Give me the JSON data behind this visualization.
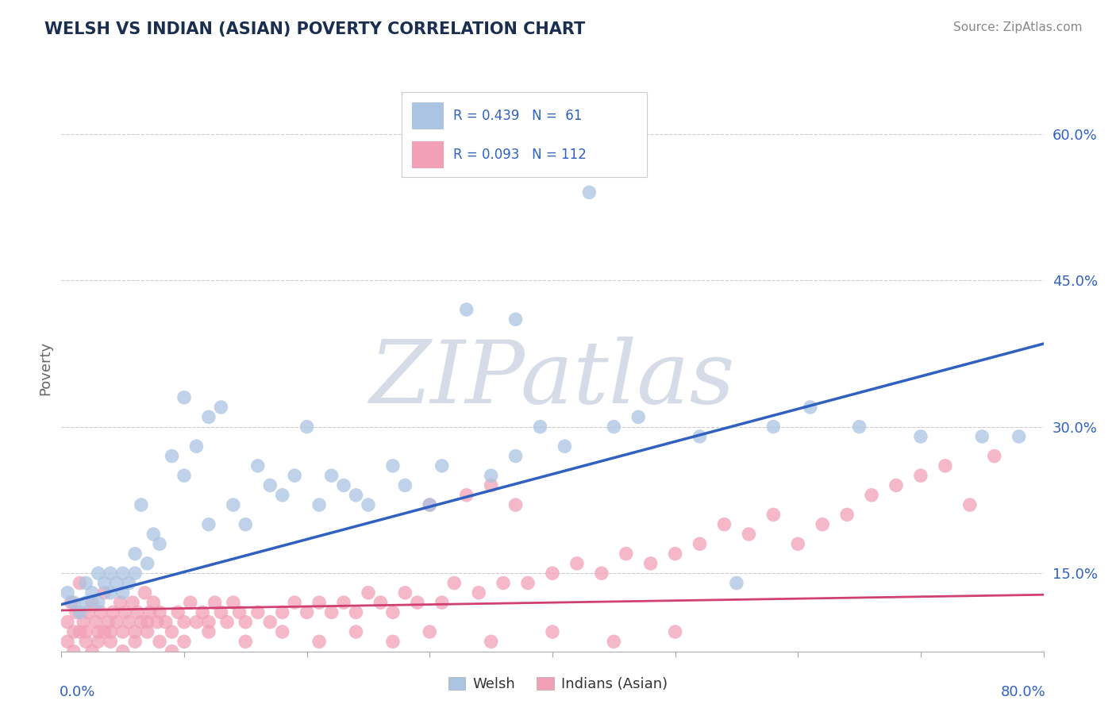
{
  "title": "WELSH VS INDIAN (ASIAN) POVERTY CORRELATION CHART",
  "source": "Source: ZipAtlas.com",
  "ylabel": "Poverty",
  "xlim": [
    0.0,
    0.8
  ],
  "ylim": [
    0.07,
    0.65
  ],
  "welsh_R": 0.439,
  "welsh_N": 61,
  "indian_R": 0.093,
  "indian_N": 112,
  "welsh_color": "#aac4e2",
  "indian_color": "#f2a0b8",
  "blue_line_color": "#3060c0",
  "pink_line_color": "#d04070",
  "title_color": "#1a2e50",
  "legend_text_color": "#3060c0",
  "background_color": "#ffffff",
  "watermark": "ZIPatlas",
  "watermark_color": "#d5dce8",
  "welsh_line_start_y": 0.118,
  "welsh_line_end_y": 0.385,
  "indian_line_start_y": 0.112,
  "indian_line_end_y": 0.128,
  "welsh_scatter_x": [
    0.005,
    0.01,
    0.015,
    0.02,
    0.02,
    0.025,
    0.03,
    0.03,
    0.035,
    0.04,
    0.04,
    0.045,
    0.05,
    0.05,
    0.055,
    0.06,
    0.06,
    0.065,
    0.07,
    0.075,
    0.08,
    0.09,
    0.1,
    0.1,
    0.11,
    0.12,
    0.12,
    0.13,
    0.14,
    0.15,
    0.16,
    0.17,
    0.18,
    0.19,
    0.2,
    0.21,
    0.22,
    0.23,
    0.24,
    0.25,
    0.27,
    0.28,
    0.3,
    0.31,
    0.33,
    0.35,
    0.37,
    0.39,
    0.41,
    0.43,
    0.45,
    0.47,
    0.37,
    0.52,
    0.55,
    0.58,
    0.61,
    0.65,
    0.7,
    0.75,
    0.78
  ],
  "welsh_scatter_y": [
    0.13,
    0.12,
    0.11,
    0.12,
    0.14,
    0.13,
    0.12,
    0.15,
    0.14,
    0.13,
    0.15,
    0.14,
    0.13,
    0.15,
    0.14,
    0.15,
    0.17,
    0.22,
    0.16,
    0.19,
    0.18,
    0.27,
    0.25,
    0.33,
    0.28,
    0.2,
    0.31,
    0.32,
    0.22,
    0.2,
    0.26,
    0.24,
    0.23,
    0.25,
    0.3,
    0.22,
    0.25,
    0.24,
    0.23,
    0.22,
    0.26,
    0.24,
    0.22,
    0.26,
    0.42,
    0.25,
    0.27,
    0.3,
    0.28,
    0.54,
    0.3,
    0.31,
    0.41,
    0.29,
    0.14,
    0.3,
    0.32,
    0.3,
    0.29,
    0.29,
    0.29
  ],
  "indian_scatter_x": [
    0.005,
    0.008,
    0.01,
    0.012,
    0.015,
    0.018,
    0.02,
    0.022,
    0.025,
    0.028,
    0.03,
    0.032,
    0.035,
    0.038,
    0.04,
    0.042,
    0.045,
    0.048,
    0.05,
    0.052,
    0.055,
    0.058,
    0.06,
    0.062,
    0.065,
    0.068,
    0.07,
    0.072,
    0.075,
    0.078,
    0.08,
    0.085,
    0.09,
    0.095,
    0.1,
    0.105,
    0.11,
    0.115,
    0.12,
    0.125,
    0.13,
    0.135,
    0.14,
    0.145,
    0.15,
    0.16,
    0.17,
    0.18,
    0.19,
    0.2,
    0.21,
    0.22,
    0.23,
    0.24,
    0.25,
    0.26,
    0.27,
    0.28,
    0.29,
    0.3,
    0.31,
    0.32,
    0.33,
    0.34,
    0.35,
    0.36,
    0.37,
    0.38,
    0.4,
    0.42,
    0.44,
    0.46,
    0.48,
    0.5,
    0.52,
    0.54,
    0.56,
    0.58,
    0.6,
    0.62,
    0.64,
    0.66,
    0.68,
    0.7,
    0.72,
    0.74,
    0.76,
    0.005,
    0.01,
    0.015,
    0.02,
    0.025,
    0.03,
    0.035,
    0.04,
    0.05,
    0.06,
    0.07,
    0.08,
    0.09,
    0.1,
    0.12,
    0.15,
    0.18,
    0.21,
    0.24,
    0.27,
    0.3,
    0.35,
    0.4,
    0.45,
    0.5
  ],
  "indian_scatter_y": [
    0.1,
    0.12,
    0.09,
    0.11,
    0.14,
    0.1,
    0.09,
    0.11,
    0.12,
    0.1,
    0.09,
    0.11,
    0.13,
    0.1,
    0.09,
    0.11,
    0.1,
    0.12,
    0.09,
    0.11,
    0.1,
    0.12,
    0.09,
    0.11,
    0.1,
    0.13,
    0.1,
    0.11,
    0.12,
    0.1,
    0.11,
    0.1,
    0.09,
    0.11,
    0.1,
    0.12,
    0.1,
    0.11,
    0.1,
    0.12,
    0.11,
    0.1,
    0.12,
    0.11,
    0.1,
    0.11,
    0.1,
    0.11,
    0.12,
    0.11,
    0.12,
    0.11,
    0.12,
    0.11,
    0.13,
    0.12,
    0.11,
    0.13,
    0.12,
    0.22,
    0.12,
    0.14,
    0.23,
    0.13,
    0.24,
    0.14,
    0.22,
    0.14,
    0.15,
    0.16,
    0.15,
    0.17,
    0.16,
    0.17,
    0.18,
    0.2,
    0.19,
    0.21,
    0.18,
    0.2,
    0.21,
    0.23,
    0.24,
    0.25,
    0.26,
    0.22,
    0.27,
    0.08,
    0.07,
    0.09,
    0.08,
    0.07,
    0.08,
    0.09,
    0.08,
    0.07,
    0.08,
    0.09,
    0.08,
    0.07,
    0.08,
    0.09,
    0.08,
    0.09,
    0.08,
    0.09,
    0.08,
    0.09,
    0.08,
    0.09,
    0.08,
    0.09
  ]
}
